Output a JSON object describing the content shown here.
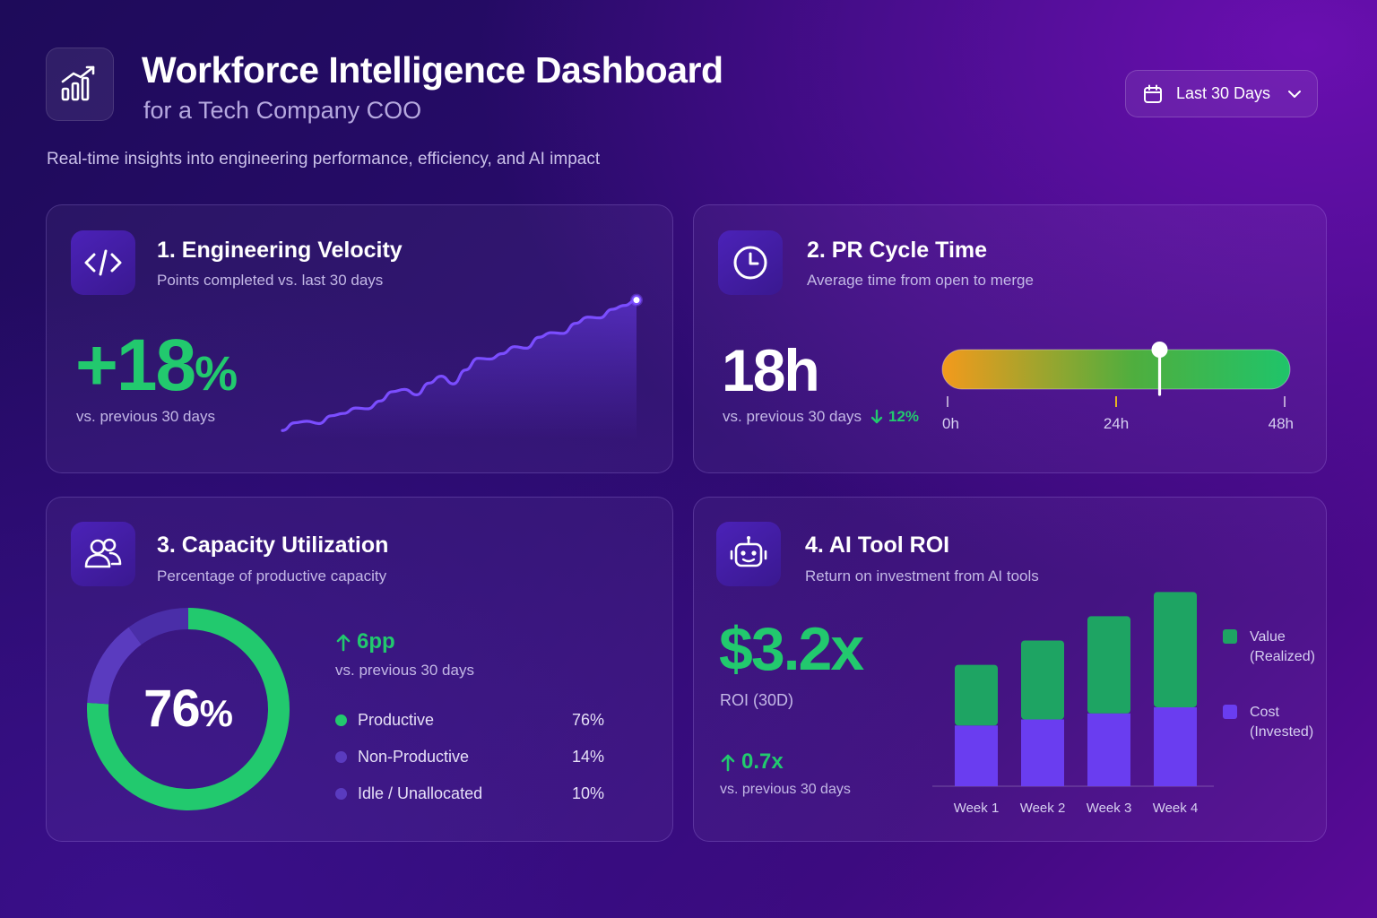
{
  "header": {
    "title": "Workforce Intelligence Dashboard",
    "subtitle": "for a Tech Company COO",
    "tagline": "Real-time insights into engineering performance, efficiency, and AI impact",
    "logo_icon": "chart-growth-icon",
    "date_filter": {
      "label": "Last 30 Days",
      "icon": "calendar-icon",
      "chevron": "chevron-down-icon"
    }
  },
  "cards": {
    "velocity": {
      "title": "1. Engineering Velocity",
      "subtitle": "Points completed vs. last 30 days",
      "icon": "code-icon",
      "value": "+18",
      "unit": "%",
      "comparison": "vs. previous 30 days"
    },
    "pr_cycle": {
      "title": "2. PR Cycle Time",
      "subtitle": "Average time from open to merge",
      "icon": "clock-icon",
      "value": "18h",
      "comparison": "vs. previous 30 days",
      "change": "12%",
      "change_direction": "down"
    },
    "capacity": {
      "title": "3. Capacity Utilization",
      "subtitle": "Percentage of productive capacity",
      "icon": "users-icon",
      "value": "76",
      "unit": "%",
      "change": "6pp",
      "change_direction": "up",
      "comparison": "vs. previous 30 days"
    },
    "ai_roi": {
      "title": "4. AI Tool ROI",
      "subtitle": "Return on investment from AI tools",
      "icon": "robot-icon",
      "value": "$3.2x",
      "value_label": "ROI (30D)",
      "change": "0.7x",
      "change_direction": "up",
      "comparison": "vs. previous 30 days"
    }
  },
  "colors": {
    "green": "#22c96e",
    "purple": "#6a3df0",
    "line": "#7b4dff",
    "gauge_start": "#f39a1c",
    "gauge_end": "#1fc46a"
  },
  "chart_data": [
    {
      "type": "line",
      "x": [
        1,
        2,
        3,
        4,
        5,
        6,
        7,
        8,
        9,
        10,
        11,
        12,
        13,
        14,
        15,
        16,
        17,
        18,
        19,
        20,
        21,
        22,
        23,
        24,
        25,
        26,
        27,
        28,
        29,
        30
      ],
      "values": [
        2,
        12,
        14,
        11,
        21,
        24,
        31,
        30,
        40,
        52,
        55,
        48,
        63,
        72,
        62,
        80,
        95,
        94,
        101,
        110,
        108,
        122,
        128,
        127,
        140,
        148,
        147,
        158,
        163,
        170
      ],
      "ylim": [
        0,
        180
      ]
    },
    {
      "type": "bar",
      "gauge": true,
      "value": 18,
      "range": [
        0,
        48
      ],
      "ticks": [
        "0h",
        "24h",
        "48h"
      ],
      "tick_values": [
        0,
        24,
        48
      ]
    },
    {
      "type": "pie",
      "donut": true,
      "labels": [
        "Productive",
        "Non-Productive",
        "Idle / Unallocated"
      ],
      "values": [
        76,
        14,
        10
      ],
      "display": [
        "76%",
        "14%",
        "10%"
      ],
      "colors": [
        "#22c96e",
        "#5a3bbf",
        "#4a2ea8"
      ]
    },
    {
      "type": "bar",
      "stacked": true,
      "categories": [
        "Week 1",
        "Week 2",
        "Week 3",
        "Week 4"
      ],
      "series": [
        {
          "name": "Cost\n(Invested)",
          "label_line1": "Cost",
          "label_line2": "(Invested)",
          "color": "#6a3df0",
          "values": [
            1.0,
            1.1,
            1.2,
            1.3
          ]
        },
        {
          "name": "Value\n(Realized)",
          "label_line1": "Value",
          "label_line2": "(Realized)",
          "color": "#1ea463",
          "values": [
            1.0,
            1.3,
            1.6,
            1.9
          ]
        }
      ],
      "ylim": [
        0,
        3.5
      ]
    }
  ]
}
